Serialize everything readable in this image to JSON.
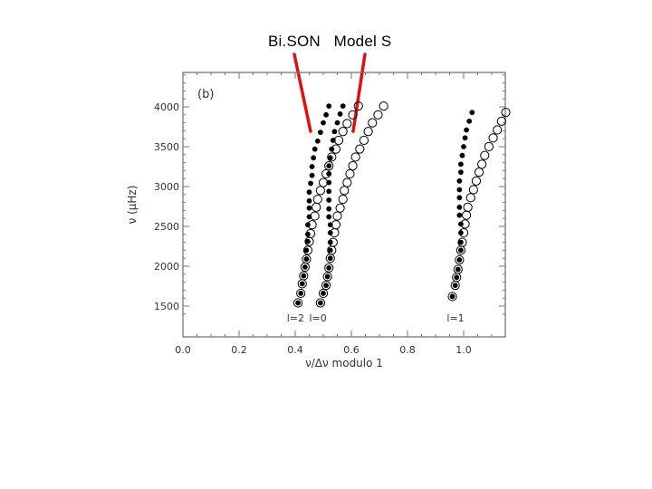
{
  "slide": {
    "title": "Bi.SON   Model S",
    "pointer_color": "#e01010"
  },
  "chart_data": {
    "type": "scatter",
    "panel_label": "(b)",
    "xlabel": "ν/Δν  modulo 1",
    "ylabel": "ν (μHz)",
    "xlim": [
      0.0,
      1.15
    ],
    "ylim": [
      1350,
      4400
    ],
    "xticks": [
      0.0,
      0.2,
      0.4,
      0.6,
      0.8,
      1.0
    ],
    "xtick_labels": [
      "0.0",
      "0.2",
      "0.4",
      "0.6",
      "0.8",
      "1.0"
    ],
    "yticks": [
      1500,
      2000,
      2500,
      3000,
      3500,
      4000
    ],
    "ytick_labels": [
      "1500",
      "2000",
      "2500",
      "3000",
      "3500",
      "4000"
    ],
    "grid": false,
    "mode_labels": [
      {
        "text": "l=2",
        "x": 0.37,
        "y": 1420
      },
      {
        "text": "l=0",
        "x": 0.45,
        "y": 1420
      },
      {
        "text": "l=1",
        "x": 0.94,
        "y": 1420
      }
    ],
    "series": [
      {
        "name": "BiSON",
        "marker": "filled-dot",
        "color": "#000000",
        "points": [
          [
            0.41,
            1540
          ],
          [
            0.42,
            1660
          ],
          [
            0.425,
            1780
          ],
          [
            0.43,
            1880
          ],
          [
            0.435,
            1990
          ],
          [
            0.44,
            2090
          ],
          [
            0.44,
            2200
          ],
          [
            0.445,
            2310
          ],
          [
            0.445,
            2400
          ],
          [
            0.445,
            2520
          ],
          [
            0.45,
            2620
          ],
          [
            0.45,
            2730
          ],
          [
            0.45,
            2820
          ],
          [
            0.45,
            2930
          ],
          [
            0.455,
            3040
          ],
          [
            0.46,
            3140
          ],
          [
            0.46,
            3250
          ],
          [
            0.465,
            3360
          ],
          [
            0.47,
            3470
          ],
          [
            0.48,
            3570
          ],
          [
            0.49,
            3680
          ],
          [
            0.5,
            3800
          ],
          [
            0.51,
            3900
          ],
          [
            0.52,
            4010
          ],
          [
            0.49,
            1540
          ],
          [
            0.5,
            1660
          ],
          [
            0.51,
            1760
          ],
          [
            0.515,
            1870
          ],
          [
            0.52,
            1980
          ],
          [
            0.525,
            2100
          ],
          [
            0.525,
            2200
          ],
          [
            0.525,
            2300
          ],
          [
            0.525,
            2420
          ],
          [
            0.525,
            2520
          ],
          [
            0.52,
            2620
          ],
          [
            0.52,
            2720
          ],
          [
            0.52,
            2830
          ],
          [
            0.52,
            2940
          ],
          [
            0.52,
            3050
          ],
          [
            0.52,
            3160
          ],
          [
            0.52,
            3260
          ],
          [
            0.525,
            3360
          ],
          [
            0.53,
            3470
          ],
          [
            0.535,
            3580
          ],
          [
            0.54,
            3690
          ],
          [
            0.55,
            3800
          ],
          [
            0.56,
            3910
          ],
          [
            0.57,
            4010
          ],
          [
            0.96,
            1620
          ],
          [
            0.97,
            1760
          ],
          [
            0.975,
            1860
          ],
          [
            0.98,
            1960
          ],
          [
            0.985,
            2080
          ],
          [
            0.99,
            2200
          ],
          [
            0.99,
            2300
          ],
          [
            0.99,
            2420
          ],
          [
            0.99,
            2530
          ],
          [
            0.985,
            2640
          ],
          [
            0.985,
            2740
          ],
          [
            0.985,
            2860
          ],
          [
            0.985,
            2960
          ],
          [
            0.985,
            3070
          ],
          [
            0.99,
            3180
          ],
          [
            0.99,
            3280
          ],
          [
            0.995,
            3390
          ],
          [
            1.0,
            3500
          ],
          [
            1.005,
            3610
          ],
          [
            1.01,
            3710
          ],
          [
            1.02,
            3820
          ],
          [
            1.03,
            3930
          ]
        ]
      },
      {
        "name": "Model S",
        "marker": "open-circle",
        "color": "#000000",
        "points": [
          [
            0.41,
            1540
          ],
          [
            0.42,
            1660
          ],
          [
            0.425,
            1780
          ],
          [
            0.43,
            1880
          ],
          [
            0.435,
            1990
          ],
          [
            0.44,
            2090
          ],
          [
            0.445,
            2200
          ],
          [
            0.45,
            2310
          ],
          [
            0.455,
            2410
          ],
          [
            0.46,
            2520
          ],
          [
            0.47,
            2630
          ],
          [
            0.475,
            2740
          ],
          [
            0.48,
            2840
          ],
          [
            0.49,
            2950
          ],
          [
            0.5,
            3050
          ],
          [
            0.51,
            3160
          ],
          [
            0.52,
            3260
          ],
          [
            0.53,
            3370
          ],
          [
            0.545,
            3470
          ],
          [
            0.555,
            3580
          ],
          [
            0.57,
            3690
          ],
          [
            0.585,
            3790
          ],
          [
            0.605,
            3900
          ],
          [
            0.625,
            4010
          ],
          [
            0.49,
            1540
          ],
          [
            0.5,
            1660
          ],
          [
            0.51,
            1760
          ],
          [
            0.515,
            1870
          ],
          [
            0.52,
            1980
          ],
          [
            0.525,
            2100
          ],
          [
            0.53,
            2200
          ],
          [
            0.535,
            2300
          ],
          [
            0.54,
            2420
          ],
          [
            0.545,
            2520
          ],
          [
            0.55,
            2630
          ],
          [
            0.56,
            2730
          ],
          [
            0.57,
            2840
          ],
          [
            0.575,
            2950
          ],
          [
            0.585,
            3050
          ],
          [
            0.595,
            3160
          ],
          [
            0.605,
            3260
          ],
          [
            0.615,
            3370
          ],
          [
            0.63,
            3470
          ],
          [
            0.645,
            3580
          ],
          [
            0.66,
            3690
          ],
          [
            0.675,
            3800
          ],
          [
            0.695,
            3900
          ],
          [
            0.715,
            4010
          ],
          [
            0.96,
            1620
          ],
          [
            0.97,
            1760
          ],
          [
            0.975,
            1860
          ],
          [
            0.98,
            1960
          ],
          [
            0.985,
            2080
          ],
          [
            0.99,
            2200
          ],
          [
            0.995,
            2300
          ],
          [
            1.0,
            2420
          ],
          [
            1.005,
            2530
          ],
          [
            1.01,
            2640
          ],
          [
            1.015,
            2740
          ],
          [
            1.025,
            2860
          ],
          [
            1.035,
            2960
          ],
          [
            1.045,
            3070
          ],
          [
            1.055,
            3180
          ],
          [
            1.065,
            3280
          ],
          [
            1.075,
            3390
          ],
          [
            1.09,
            3500
          ],
          [
            1.105,
            3610
          ],
          [
            1.12,
            3710
          ],
          [
            1.135,
            3820
          ],
          [
            1.15,
            3930
          ]
        ]
      }
    ]
  }
}
